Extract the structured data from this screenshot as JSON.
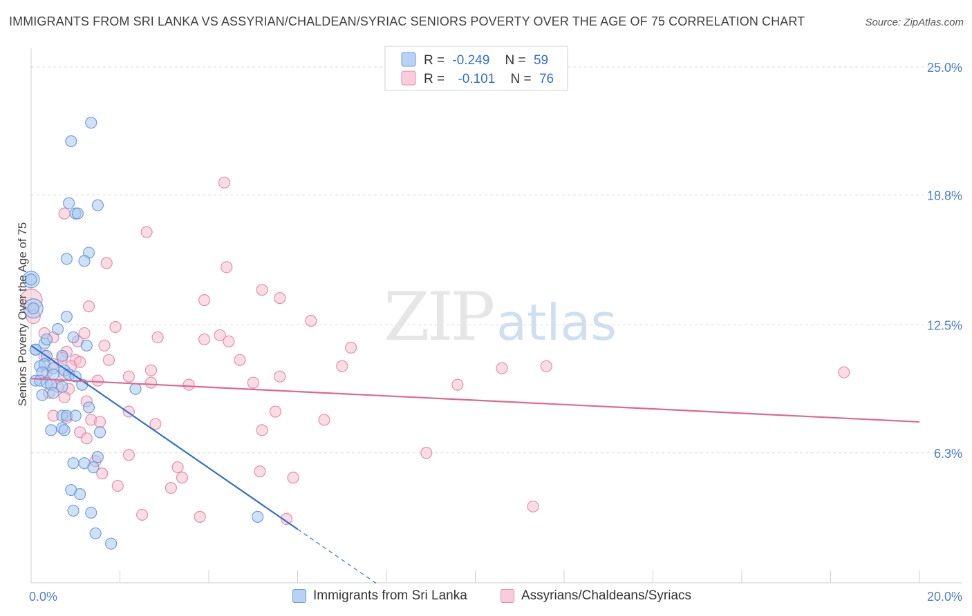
{
  "header": {
    "title": "IMMIGRANTS FROM SRI LANKA VS ASSYRIAN/CHALDEAN/SYRIAC SENIORS POVERTY OVER THE AGE OF 75 CORRELATION CHART",
    "source": "Source: ZipAtlas.com"
  },
  "watermark": {
    "zip": "ZIP",
    "atlas": "atlas"
  },
  "chart_data": {
    "type": "scatter",
    "title": "IMMIGRANTS FROM SRI LANKA VS ASSYRIAN/CHALDEAN/SYRIAC SENIORS POVERTY OVER THE AGE OF 75 CORRELATION CHART",
    "xlabel": "",
    "ylabel": "Seniors Poverty Over the Age of 75",
    "xlim": [
      0,
      20
    ],
    "ylim": [
      0,
      25.5
    ],
    "x_tick_labels": [
      "0.0%",
      "20.0%"
    ],
    "y_ticks": [
      6.3,
      12.5,
      18.8,
      25.0
    ],
    "y_tick_labels": [
      "6.3%",
      "12.5%",
      "18.8%",
      "25.0%"
    ],
    "stats": [
      {
        "r_label": "R =",
        "r": "-0.249",
        "n_label": "N =",
        "n": "59"
      },
      {
        "r_label": "R =",
        "r": "-0.101",
        "n_label": "N =",
        "n": "76"
      }
    ],
    "colors": {
      "blue_fill": "#a8c8f0",
      "blue_stroke": "#5b8fd6",
      "blue_line": "#2f6fd0",
      "pink_fill": "#f6bfd0",
      "pink_stroke": "#e27d9d",
      "pink_line": "#e0668f",
      "axis_text": "#4a7fd0",
      "grid": "#d9d9d9"
    },
    "series": [
      {
        "name": "Immigrants from Sri Lanka",
        "color": "#5b8fd6",
        "trend": {
          "x0": 0.0,
          "y0": 11.5,
          "x1": 6.0,
          "y1": 2.6,
          "dash_to_x": 7.8
        },
        "points": [
          [
            1.35,
            22.3
          ],
          [
            0.9,
            21.4
          ],
          [
            0.85,
            18.4
          ],
          [
            1.5,
            18.3
          ],
          [
            1.0,
            17.9
          ],
          [
            1.05,
            17.9
          ],
          [
            1.3,
            16.0
          ],
          [
            0.8,
            15.7
          ],
          [
            1.2,
            15.6
          ],
          [
            0.0,
            14.7
          ],
          [
            0.05,
            13.3
          ],
          [
            0.8,
            12.9
          ],
          [
            0.6,
            12.3
          ],
          [
            0.3,
            11.6
          ],
          [
            0.35,
            11.8
          ],
          [
            0.95,
            11.9
          ],
          [
            1.25,
            11.5
          ],
          [
            0.1,
            11.3
          ],
          [
            0.35,
            11.0
          ],
          [
            0.7,
            11.0
          ],
          [
            0.2,
            10.5
          ],
          [
            0.3,
            10.6
          ],
          [
            0.5,
            10.4
          ],
          [
            0.75,
            10.3
          ],
          [
            0.25,
            10.2
          ],
          [
            0.5,
            10.1
          ],
          [
            0.85,
            10.1
          ],
          [
            1.0,
            10.0
          ],
          [
            0.1,
            9.8
          ],
          [
            0.2,
            9.8
          ],
          [
            0.35,
            9.7
          ],
          [
            0.45,
            9.6
          ],
          [
            0.7,
            9.5
          ],
          [
            1.15,
            9.6
          ],
          [
            2.35,
            9.4
          ],
          [
            0.25,
            9.1
          ],
          [
            0.5,
            9.2
          ],
          [
            1.3,
            8.5
          ],
          [
            0.7,
            8.1
          ],
          [
            0.8,
            8.1
          ],
          [
            1.0,
            8.1
          ],
          [
            0.45,
            7.4
          ],
          [
            0.7,
            7.5
          ],
          [
            0.75,
            7.4
          ],
          [
            1.55,
            7.3
          ],
          [
            1.5,
            6.1
          ],
          [
            0.95,
            5.8
          ],
          [
            1.2,
            5.8
          ],
          [
            1.4,
            5.6
          ],
          [
            0.9,
            4.5
          ],
          [
            1.1,
            4.3
          ],
          [
            0.95,
            3.5
          ],
          [
            1.35,
            3.4
          ],
          [
            1.45,
            2.4
          ],
          [
            1.8,
            1.9
          ],
          [
            5.1,
            3.2
          ],
          [
            0.0,
            14.7
          ],
          [
            0.05,
            13.3
          ],
          [
            0.1,
            11.3
          ]
        ]
      },
      {
        "name": "Assyrians/Chaldeans/Syriacs",
        "color": "#e27d9d",
        "trend": {
          "x0": 0.0,
          "y0": 9.9,
          "x1": 20.0,
          "y1": 7.8
        },
        "points": [
          [
            0.0,
            13.7
          ],
          [
            0.05,
            12.9
          ],
          [
            4.35,
            19.4
          ],
          [
            0.75,
            17.9
          ],
          [
            2.6,
            17.0
          ],
          [
            1.7,
            15.5
          ],
          [
            4.4,
            15.3
          ],
          [
            5.2,
            14.2
          ],
          [
            3.9,
            13.7
          ],
          [
            5.6,
            13.8
          ],
          [
            1.3,
            13.4
          ],
          [
            6.3,
            12.7
          ],
          [
            1.9,
            12.4
          ],
          [
            0.3,
            12.1
          ],
          [
            1.2,
            12.1
          ],
          [
            0.5,
            11.9
          ],
          [
            2.85,
            11.9
          ],
          [
            4.25,
            12.0
          ],
          [
            3.9,
            11.8
          ],
          [
            4.45,
            11.7
          ],
          [
            1.05,
            11.7
          ],
          [
            1.65,
            11.5
          ],
          [
            0.8,
            11.2
          ],
          [
            7.2,
            11.4
          ],
          [
            0.3,
            11.0
          ],
          [
            0.7,
            10.9
          ],
          [
            1.0,
            10.8
          ],
          [
            1.75,
            10.8
          ],
          [
            4.7,
            10.8
          ],
          [
            0.5,
            10.6
          ],
          [
            0.9,
            10.5
          ],
          [
            1.1,
            10.7
          ],
          [
            7.0,
            10.5
          ],
          [
            10.6,
            10.4
          ],
          [
            11.6,
            10.5
          ],
          [
            2.7,
            10.3
          ],
          [
            18.3,
            10.2
          ],
          [
            0.35,
            10.2
          ],
          [
            0.75,
            10.1
          ],
          [
            2.2,
            10.0
          ],
          [
            5.6,
            10.0
          ],
          [
            1.5,
            9.8
          ],
          [
            2.7,
            9.7
          ],
          [
            3.55,
            9.6
          ],
          [
            5.0,
            9.7
          ],
          [
            9.6,
            9.6
          ],
          [
            0.6,
            9.5
          ],
          [
            0.85,
            9.4
          ],
          [
            0.4,
            9.2
          ],
          [
            0.75,
            9.0
          ],
          [
            1.25,
            8.8
          ],
          [
            2.2,
            8.3
          ],
          [
            5.5,
            8.3
          ],
          [
            0.5,
            8.1
          ],
          [
            0.8,
            8.0
          ],
          [
            1.35,
            7.9
          ],
          [
            6.6,
            7.9
          ],
          [
            1.55,
            7.8
          ],
          [
            2.8,
            7.7
          ],
          [
            5.2,
            7.4
          ],
          [
            1.1,
            7.3
          ],
          [
            1.25,
            7.0
          ],
          [
            8.9,
            6.3
          ],
          [
            2.2,
            6.2
          ],
          [
            1.45,
            5.9
          ],
          [
            3.3,
            5.6
          ],
          [
            5.15,
            5.4
          ],
          [
            1.6,
            5.3
          ],
          [
            3.4,
            5.1
          ],
          [
            5.9,
            5.1
          ],
          [
            1.95,
            4.7
          ],
          [
            3.15,
            4.6
          ],
          [
            11.3,
            3.7
          ],
          [
            2.5,
            3.3
          ],
          [
            3.8,
            3.2
          ],
          [
            5.75,
            3.1
          ]
        ]
      }
    ]
  },
  "legend": {
    "items": [
      {
        "label": "Immigrants from Sri Lanka"
      },
      {
        "label": "Assyrians/Chaldeans/Syriacs"
      }
    ]
  }
}
